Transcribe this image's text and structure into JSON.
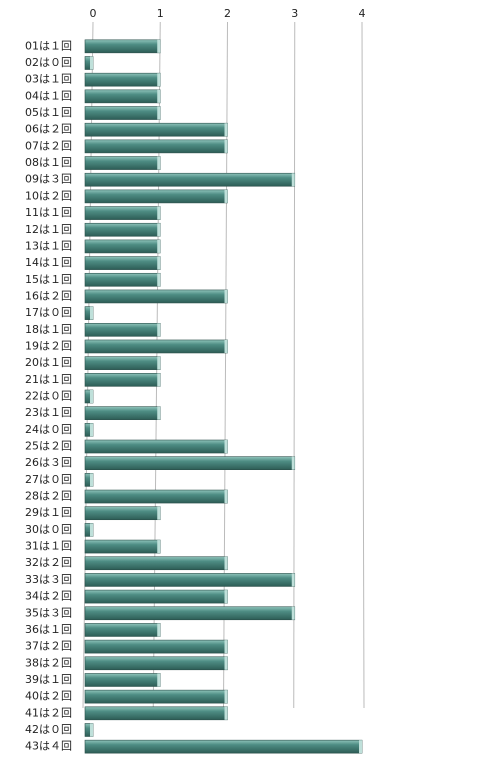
{
  "chart_data": {
    "type": "bar",
    "orientation": "horizontal",
    "categories": [
      "01は１回",
      "02は０回",
      "03は１回",
      "04は１回",
      "05は１回",
      "06は２回",
      "07は２回",
      "08は１回",
      "09は３回",
      "10は２回",
      "11は１回",
      "12は１回",
      "13は１回",
      "14は１回",
      "15は１回",
      "16は２回",
      "17は０回",
      "18は１回",
      "19は２回",
      "20は１回",
      "21は１回",
      "22は０回",
      "23は１回",
      "24は０回",
      "25は２回",
      "26は３回",
      "27は０回",
      "28は２回",
      "29は１回",
      "30は０回",
      "31は１回",
      "32は２回",
      "33は３回",
      "34は２回",
      "35は３回",
      "36は１回",
      "37は２回",
      "38は２回",
      "39は１回",
      "40は２回",
      "41は２回",
      "42は０回",
      "43は４回"
    ],
    "values": [
      1,
      0,
      1,
      1,
      1,
      2,
      2,
      1,
      3,
      2,
      1,
      1,
      1,
      1,
      1,
      2,
      0,
      1,
      2,
      1,
      1,
      0,
      1,
      0,
      2,
      3,
      0,
      2,
      1,
      0,
      1,
      2,
      3,
      2,
      3,
      1,
      2,
      2,
      1,
      2,
      2,
      0,
      4
    ],
    "color": "#4e8d84",
    "xlim": [
      0,
      4
    ],
    "xticks": [
      0,
      1,
      2,
      3,
      4
    ],
    "grid": true
  }
}
